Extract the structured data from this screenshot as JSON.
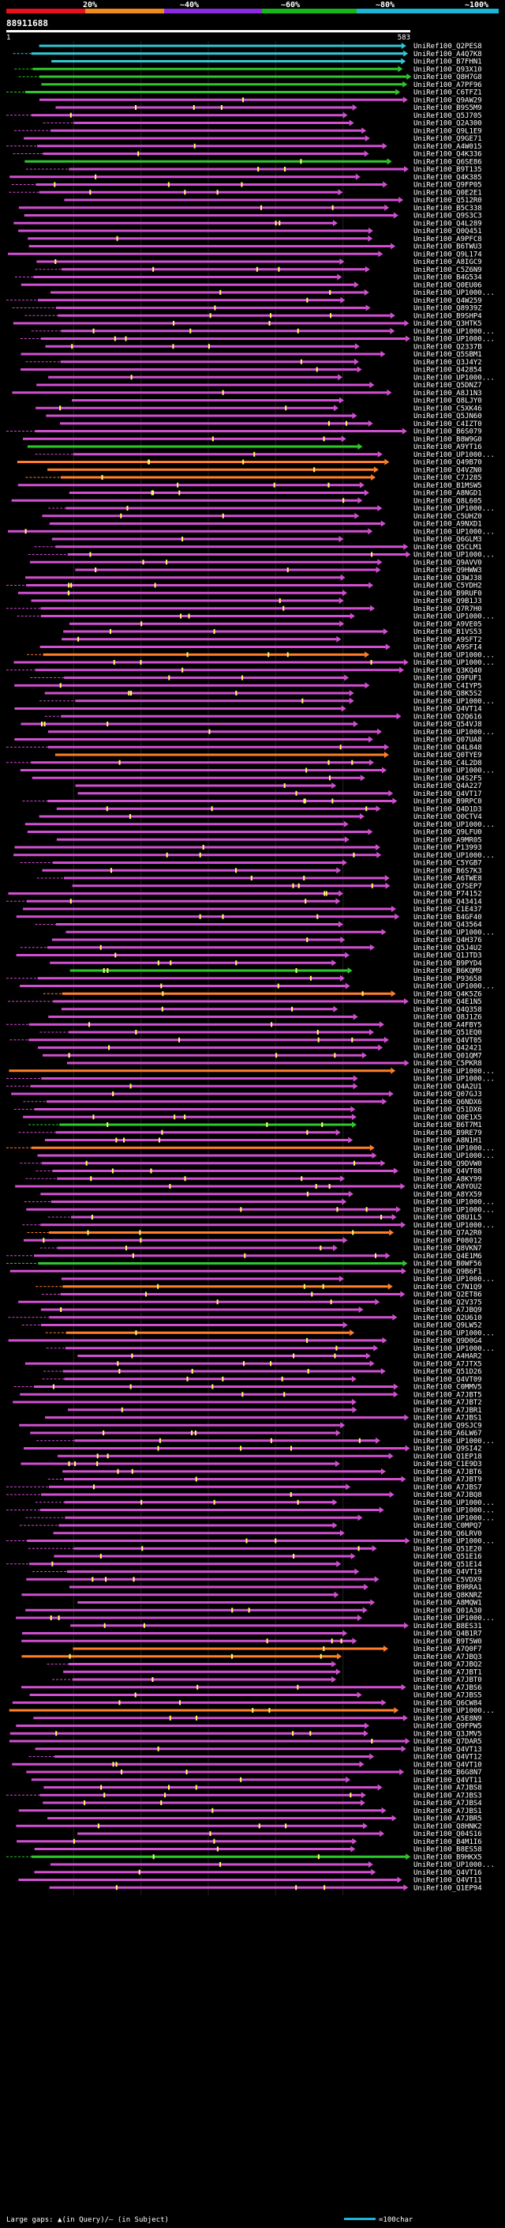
{
  "query": {
    "id": "88911688",
    "start": "1",
    "end": "583"
  },
  "scale": {
    "labels": [
      "20%",
      "~40%",
      "~60%",
      "~80%",
      "~100%"
    ],
    "colors": [
      "#e8101e",
      "#f08a1c",
      "#8a2be2",
      "#18b418",
      "#1ab6d8"
    ]
  },
  "colors": {
    "identity_low": "#ff7f2a",
    "identity_mid": "#d24fd2",
    "identity_high": "#2ec72e",
    "identity_top": "#33c9d6",
    "insert": "#ffff66",
    "background": "#000000"
  },
  "legend": {
    "text": "Large gaps: ▲(in Query)/— (in Subject)",
    "bar_label": "=100char"
  },
  "hits": [
    {
      "label": "UniRef100_Q2PES8",
      "identity": 5
    },
    {
      "label": "UniRef100_A4Q7K8",
      "identity": 4
    },
    {
      "label": "UniRef100_B7FHN1",
      "identity": 4
    },
    {
      "label": "UniRef100_Q93X10",
      "identity": 3
    },
    {
      "label": "UniRef100_Q8H7G8",
      "identity": 3
    },
    {
      "label": "UniRef100_A7PF96",
      "identity": 3
    },
    {
      "label": "UniRef100_C6TFZ1",
      "identity": 3
    },
    {
      "label": "UniRef100_Q9AW29",
      "identity": 2
    },
    {
      "label": "UniRef100_B9S5M9",
      "identity": 2
    },
    {
      "label": "UniRef100_Q5J705",
      "identity": 2
    },
    {
      "label": "UniRef100_Q2A300",
      "identity": 2
    },
    {
      "label": "UniRef100_Q9L1E9",
      "identity": 2
    },
    {
      "label": "UniRef100_Q9GE71",
      "identity": 2
    },
    {
      "label": "UniRef100_A4W015",
      "identity": 2
    },
    {
      "label": "UniRef100_Q4K336",
      "identity": 2
    },
    {
      "label": "UniRef100_Q6SE86",
      "identity": 3
    },
    {
      "label": "UniRef100_B9T135",
      "identity": 2
    },
    {
      "label": "UniRef100_Q4K385",
      "identity": 2
    },
    {
      "label": "UniRef100_Q9FP05",
      "identity": 2
    },
    {
      "label": "UniRef100_Q0E2E1",
      "identity": 2
    },
    {
      "label": "UniRef100_Q512R0",
      "identity": 2
    },
    {
      "label": "UniRef100_B5C338",
      "identity": 2
    },
    {
      "label": "UniRef100_Q9S3C3",
      "identity": 2
    },
    {
      "label": "UniRef100_Q4L289",
      "identity": 2
    },
    {
      "label": "UniRef100_Q0Q451",
      "identity": 2
    },
    {
      "label": "UniRef100_A9PFC8",
      "identity": 2
    },
    {
      "label": "UniRef100_B6TWU3",
      "identity": 2
    },
    {
      "label": "UniRef100_Q9L174",
      "identity": 2
    },
    {
      "label": "UniRef100_A8IGC9",
      "identity": 2
    },
    {
      "label": "UniRef100_C5Z6N9",
      "identity": 2
    },
    {
      "label": "UniRef100_B4G534",
      "identity": 2
    },
    {
      "label": "UniRef100_Q0EU06",
      "identity": 2
    },
    {
      "label": "UniRef100_UP1000...",
      "identity": 2
    },
    {
      "label": "UniRef100_Q4W259",
      "identity": 2
    },
    {
      "label": "UniRef100_Q8939Z",
      "identity": 2
    },
    {
      "label": "UniRef100_B9SHP4",
      "identity": 2
    },
    {
      "label": "UniRef100_Q3HTK5",
      "identity": 2
    },
    {
      "label": "UniRef100_UP1000...",
      "identity": 2
    },
    {
      "label": "UniRef100_UP1000...",
      "identity": 2
    },
    {
      "label": "UniRef100_Q2337B",
      "identity": 2
    },
    {
      "label": "UniRef100_Q5SBM1",
      "identity": 2
    },
    {
      "label": "UniRef100_Q3J4Y2",
      "identity": 2
    },
    {
      "label": "UniRef100_Q42854",
      "identity": 2
    },
    {
      "label": "UniRef100_UP1000...",
      "identity": 2
    },
    {
      "label": "UniRef100_Q5DNZ7",
      "identity": 2
    },
    {
      "label": "UniRef100_A8J1N3",
      "identity": 2
    },
    {
      "label": "UniRef100_Q8LJY0",
      "identity": 2
    },
    {
      "label": "UniRef100_C5XK46",
      "identity": 2
    },
    {
      "label": "UniRef100_Q5JN60",
      "identity": 2
    },
    {
      "label": "UniRef100_C4IZT0",
      "identity": 2
    },
    {
      "label": "UniRef100_B6S079",
      "identity": 2
    },
    {
      "label": "UniRef100_B8W9G0",
      "identity": 2
    },
    {
      "label": "UniRef100_A9YT16",
      "identity": 3
    },
    {
      "label": "UniRef100_UP1000...",
      "identity": 2
    },
    {
      "label": "UniRef100_Q49B70",
      "identity": 1
    },
    {
      "label": "UniRef100_Q4VZN0",
      "identity": 1
    },
    {
      "label": "UniRef100_C7J285",
      "identity": 1
    },
    {
      "label": "UniRef100_B1MSW5",
      "identity": 2
    },
    {
      "label": "UniRef100_A8NGD1",
      "identity": 2
    },
    {
      "label": "UniRef100_Q8L605",
      "identity": 2
    },
    {
      "label": "UniRef100_UP1000...",
      "identity": 2
    },
    {
      "label": "UniRef100_C5UHZ0",
      "identity": 2
    },
    {
      "label": "UniRef100_A9NXD1",
      "identity": 2
    },
    {
      "label": "UniRef100_UP1000...",
      "identity": 2
    },
    {
      "label": "UniRef100_Q6GLM3",
      "identity": 2
    },
    {
      "label": "UniRef100_Q5CLM1",
      "identity": 2
    },
    {
      "label": "UniRef100_UP1000...",
      "identity": 2
    },
    {
      "label": "UniRef100_Q9AVV0",
      "identity": 2
    },
    {
      "label": "UniRef100_Q9HWW3",
      "identity": 2
    },
    {
      "label": "UniRef100_Q3WJ38",
      "identity": 2
    },
    {
      "label": "UniRef100_C5YDH2",
      "identity": 2
    },
    {
      "label": "UniRef100_B9RUF0",
      "identity": 2
    },
    {
      "label": "UniRef100_Q9B1J3",
      "identity": 2
    },
    {
      "label": "UniRef100_Q7R7H0",
      "identity": 2
    },
    {
      "label": "UniRef100_UP1000...",
      "identity": 2
    },
    {
      "label": "UniRef100_A9VE05",
      "identity": 2
    },
    {
      "label": "UniRef100_B1VS53",
      "identity": 2
    },
    {
      "label": "UniRef100_A9SFT2",
      "identity": 2
    },
    {
      "label": "UniRef100_A9SFI4",
      "identity": 2
    },
    {
      "label": "UniRef100_UP1000...",
      "identity": 1
    },
    {
      "label": "UniRef100_UP1000...",
      "identity": 2
    },
    {
      "label": "UniRef100_Q3KQ40",
      "identity": 2
    },
    {
      "label": "UniRef100_Q9FUF1",
      "identity": 2
    },
    {
      "label": "UniRef100_C4IYP5",
      "identity": 2
    },
    {
      "label": "UniRef100_Q8K5S2",
      "identity": 2
    },
    {
      "label": "UniRef100_UP1000...",
      "identity": 2
    },
    {
      "label": "UniRef100_Q4VT14",
      "identity": 2
    },
    {
      "label": "UniRef100_Q2Q616",
      "identity": 2
    },
    {
      "label": "UniRef100_Q54VJ8",
      "identity": 2
    },
    {
      "label": "UniRef100_UP1000...",
      "identity": 2
    },
    {
      "label": "UniRef100_Q07UA8",
      "identity": 2
    },
    {
      "label": "UniRef100_Q4L848",
      "identity": 2
    },
    {
      "label": "UniRef100_Q0TYE9",
      "identity": 1
    },
    {
      "label": "UniRef100_C4L2D8",
      "identity": 2
    },
    {
      "label": "UniRef100_UP1000...",
      "identity": 2
    },
    {
      "label": "UniRef100_Q4S2F5",
      "identity": 2
    },
    {
      "label": "UniRef100_Q4A227",
      "identity": 2
    },
    {
      "label": "UniRef100_Q4VT17",
      "identity": 2
    },
    {
      "label": "UniRef100_B9RPC0",
      "identity": 2
    },
    {
      "label": "UniRef100_Q4D1D3",
      "identity": 2
    },
    {
      "label": "UniRef100_Q0CTV4",
      "identity": 2
    },
    {
      "label": "UniRef100_UP1000...",
      "identity": 2
    },
    {
      "label": "UniRef100_Q9LFU0",
      "identity": 2
    },
    {
      "label": "UniRef100_A9MR05",
      "identity": 2
    },
    {
      "label": "UniRef100_P13993",
      "identity": 2
    },
    {
      "label": "UniRef100_UP1000...",
      "identity": 2
    },
    {
      "label": "UniRef100_C5YGB7",
      "identity": 2
    },
    {
      "label": "UniRef100_B6S7K3",
      "identity": 2
    },
    {
      "label": "UniRef100_A6TWE8",
      "identity": 2
    },
    {
      "label": "UniRef100_Q7SEP7",
      "identity": 2
    },
    {
      "label": "UniRef100_P74152",
      "identity": 2
    },
    {
      "label": "UniRef100_Q43414",
      "identity": 2
    },
    {
      "label": "UniRef100_C1E437",
      "identity": 2
    },
    {
      "label": "UniRef100_B4GF40",
      "identity": 2
    },
    {
      "label": "UniRef100_Q43564",
      "identity": 2
    },
    {
      "label": "UniRef100_UP1000...",
      "identity": 2
    },
    {
      "label": "UniRef100_Q4H376",
      "identity": 2
    },
    {
      "label": "UniRef100_Q5J4U2",
      "identity": 2
    },
    {
      "label": "UniRef100_Q1JTD3",
      "identity": 2
    },
    {
      "label": "UniRef100_B9PYD4",
      "identity": 2
    },
    {
      "label": "UniRef100_B6KQM9",
      "identity": 3
    },
    {
      "label": "UniRef100_P93658",
      "identity": 2
    },
    {
      "label": "UniRef100_UP1000...",
      "identity": 2
    },
    {
      "label": "UniRef100_Q4K5Z6",
      "identity": 1
    },
    {
      "label": "UniRef100_Q4E1N5",
      "identity": 2
    },
    {
      "label": "UniRef100_Q4Q358",
      "identity": 2
    },
    {
      "label": "UniRef100_Q8J1Z6",
      "identity": 2
    },
    {
      "label": "UniRef100_A4FBY5",
      "identity": 2
    },
    {
      "label": "UniRef100_Q51EQ0",
      "identity": 2
    },
    {
      "label": "UniRef100_Q4VT05",
      "identity": 2
    },
    {
      "label": "UniRef100_Q42421",
      "identity": 2
    },
    {
      "label": "UniRef100_Q01QM7",
      "identity": 2
    },
    {
      "label": "UniRef100_C5PKR8",
      "identity": 2
    },
    {
      "label": "UniRef100_UP1000...",
      "identity": 1
    },
    {
      "label": "UniRef100_UP1000...",
      "identity": 2
    },
    {
      "label": "UniRef100_Q4A2U1",
      "identity": 2
    },
    {
      "label": "UniRef100_Q07GJ3",
      "identity": 2
    },
    {
      "label": "UniRef100_Q6NDX6",
      "identity": 2
    },
    {
      "label": "UniRef100_Q51DX6",
      "identity": 2
    },
    {
      "label": "UniRef100_Q0E1X5",
      "identity": 2
    },
    {
      "label": "UniRef100_B6T7M1",
      "identity": 3
    },
    {
      "label": "UniRef100_B9RE79",
      "identity": 2
    },
    {
      "label": "UniRef100_A8N1H1",
      "identity": 2
    },
    {
      "label": "UniRef100_UP1000...",
      "identity": 1
    },
    {
      "label": "UniRef100_UP1000...",
      "identity": 2
    },
    {
      "label": "UniRef100_Q9DVW0",
      "identity": 2
    },
    {
      "label": "UniRef100_Q4VT08",
      "identity": 2
    },
    {
      "label": "UniRef100_A8KY99",
      "identity": 2
    },
    {
      "label": "UniRef100_A8YOU2",
      "identity": 2
    },
    {
      "label": "UniRef100_A8YX59",
      "identity": 2
    },
    {
      "label": "UniRef100_UP1000...",
      "identity": 2
    },
    {
      "label": "UniRef100_UP1000...",
      "identity": 2
    },
    {
      "label": "UniRef100_Q8U1L5",
      "identity": 2
    },
    {
      "label": "UniRef100_UP1000...",
      "identity": 2
    },
    {
      "label": "UniRef100_Q7A2R0",
      "identity": 1
    },
    {
      "label": "UniRef100_P08012",
      "identity": 2
    },
    {
      "label": "UniRef100_Q8VKN7",
      "identity": 2
    },
    {
      "label": "UniRef100_Q4E1M6",
      "identity": 2
    },
    {
      "label": "UniRef100_B0WF56",
      "identity": 3
    },
    {
      "label": "UniRef100_Q9B6F1",
      "identity": 2
    },
    {
      "label": "UniRef100_UP1000...",
      "identity": 2
    },
    {
      "label": "UniRef100_C7N1Q9",
      "identity": 1
    },
    {
      "label": "UniRef100_Q2ET86",
      "identity": 2
    },
    {
      "label": "UniRef100_Q2V375",
      "identity": 2
    },
    {
      "label": "UniRef100_A7JBQ9",
      "identity": 2
    },
    {
      "label": "UniRef100_Q2U610",
      "identity": 2
    },
    {
      "label": "UniRef100_Q9LW52",
      "identity": 2
    },
    {
      "label": "UniRef100_UP1000...",
      "identity": 1
    },
    {
      "label": "UniRef100_Q9D0G4",
      "identity": 2
    },
    {
      "label": "UniRef100_UP1000...",
      "identity": 2
    },
    {
      "label": "UniRef100_A4HAR2",
      "identity": 2
    },
    {
      "label": "UniRef100_A7JTX5",
      "identity": 2
    },
    {
      "label": "UniRef100_Q51D26",
      "identity": 2
    },
    {
      "label": "UniRef100_Q4VT09",
      "identity": 2
    },
    {
      "label": "UniRef100_C0MMV5",
      "identity": 2
    },
    {
      "label": "UniRef100_A7JBT5",
      "identity": 2
    },
    {
      "label": "UniRef100_A7JBT2",
      "identity": 2
    },
    {
      "label": "UniRef100_A7JBR1",
      "identity": 2
    },
    {
      "label": "UniRef100_A7JBS1",
      "identity": 2
    },
    {
      "label": "UniRef100_Q9SJC9",
      "identity": 2
    },
    {
      "label": "UniRef100_A6LW67",
      "identity": 2
    },
    {
      "label": "UniRef100_UP1000...",
      "identity": 2
    },
    {
      "label": "UniRef100_Q9SI42",
      "identity": 2
    },
    {
      "label": "UniRef100_Q1EP18",
      "identity": 2
    },
    {
      "label": "UniRef100_C1E9D3",
      "identity": 2
    },
    {
      "label": "UniRef100_A7JBT6",
      "identity": 2
    },
    {
      "label": "UniRef100_A7JBT9",
      "identity": 2
    },
    {
      "label": "UniRef100_A7JBS7",
      "identity": 2
    },
    {
      "label": "UniRef100_A7JBQ8",
      "identity": 2
    },
    {
      "label": "UniRef100_UP1000...",
      "identity": 2
    },
    {
      "label": "UniRef100_UP1000...",
      "identity": 2
    },
    {
      "label": "UniRef100_UP1000...",
      "identity": 2
    },
    {
      "label": "UniRef100_C0MPQ7",
      "identity": 2
    },
    {
      "label": "UniRef100_Q6LRV0",
      "identity": 2
    },
    {
      "label": "UniRef100_UP1000...",
      "identity": 2
    },
    {
      "label": "UniRef100_Q51E20",
      "identity": 2
    },
    {
      "label": "UniRef100_Q51E16",
      "identity": 2
    },
    {
      "label": "UniRef100_Q51E14",
      "identity": 2
    },
    {
      "label": "UniRef100_Q4VT19",
      "identity": 2
    },
    {
      "label": "UniRef100_C5VDX9",
      "identity": 2
    },
    {
      "label": "UniRef100_B9RRA1",
      "identity": 2
    },
    {
      "label": "UniRef100_Q8KNRZ",
      "identity": 2
    },
    {
      "label": "UniRef100_A8MQW1",
      "identity": 2
    },
    {
      "label": "UniRef100_Q01A30",
      "identity": 2
    },
    {
      "label": "UniRef100_UP1000...",
      "identity": 2
    },
    {
      "label": "UniRef100_B8ES31",
      "identity": 2
    },
    {
      "label": "UniRef100_Q4B1R7",
      "identity": 2
    },
    {
      "label": "UniRef100_B9T5W0",
      "identity": 2
    },
    {
      "label": "UniRef100_A7Q0F7",
      "identity": 1
    },
    {
      "label": "UniRef100_A7JBQ3",
      "identity": 1
    },
    {
      "label": "UniRef100_A7JBQ2",
      "identity": 2
    },
    {
      "label": "UniRef100_A7JBT1",
      "identity": 2
    },
    {
      "label": "UniRef100_A7JBT0",
      "identity": 2
    },
    {
      "label": "UniRef100_A7JBS6",
      "identity": 2
    },
    {
      "label": "UniRef100_A7JBS5",
      "identity": 2
    },
    {
      "label": "UniRef100_Q6CW84",
      "identity": 2
    },
    {
      "label": "UniRef100_UP1000...",
      "identity": 1
    },
    {
      "label": "UniRef100_A5E8N9",
      "identity": 2
    },
    {
      "label": "UniRef100_Q9FPW5",
      "identity": 2
    },
    {
      "label": "UniRef100_Q3JMV5",
      "identity": 2
    },
    {
      "label": "UniRef100_Q7DAR5",
      "identity": 2
    },
    {
      "label": "UniRef100_Q4VT13",
      "identity": 2
    },
    {
      "label": "UniRef100_Q4VT12",
      "identity": 2
    },
    {
      "label": "UniRef100_Q4VT10",
      "identity": 2
    },
    {
      "label": "UniRef100_B6G8N7",
      "identity": 2
    },
    {
      "label": "UniRef100_Q4VT11",
      "identity": 2
    },
    {
      "label": "UniRef100_A7JBS8",
      "identity": 2
    },
    {
      "label": "UniRef100_A7JBS3",
      "identity": 2
    },
    {
      "label": "UniRef100_A7JBS4",
      "identity": 2
    },
    {
      "label": "UniRef100_A7JBS1",
      "identity": 2
    },
    {
      "label": "UniRef100_A7JBR5",
      "identity": 2
    },
    {
      "label": "UniRef100_Q8HNK2",
      "identity": 2
    },
    {
      "label": "UniRef100_Q04S16",
      "identity": 2
    },
    {
      "label": "UniRef100_B4M1I6",
      "identity": 2
    },
    {
      "label": "UniRef100_B8ES58",
      "identity": 2
    },
    {
      "label": "UniRef100_B9HKX5",
      "identity": 3
    },
    {
      "label": "UniRef100_UP1000...",
      "identity": 2
    },
    {
      "label": "UniRef100_Q4VT16",
      "identity": 2
    },
    {
      "label": "UniRef100_Q4VT11",
      "identity": 2
    },
    {
      "label": "UniRef100_Q1EP94",
      "identity": 2
    }
  ]
}
